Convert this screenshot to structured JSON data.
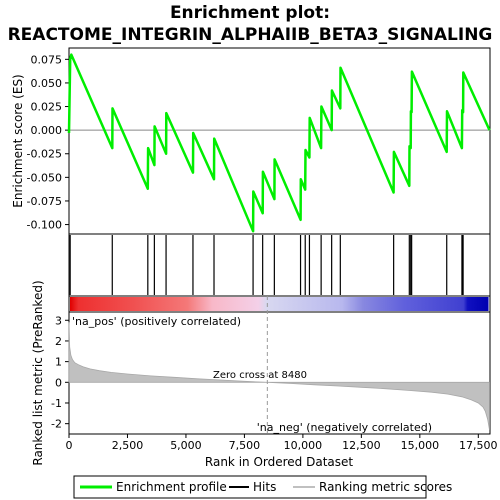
{
  "chart_data": {
    "type": "line",
    "title_line1": "Enrichment plot:",
    "title_line2": "REACTOME_INTEGRIN_ALPHAIIB_BETA3_SIGNALING",
    "es_panel": {
      "ylabel": "Enrichment score (ES)",
      "ylim": [
        -0.11,
        0.087
      ],
      "yticks": [
        "0.075",
        "0.050",
        "0.025",
        "0.000",
        "-0.025",
        "-0.050",
        "-0.075",
        "-0.100"
      ],
      "ytick_values": [
        0.075,
        0.05,
        0.025,
        0.0,
        -0.025,
        -0.05,
        -0.075,
        -0.1
      ],
      "series": [
        {
          "name": "Enrichment profile",
          "color": "#00ee00",
          "x": [
            0,
            50,
            100,
            1850,
            1860,
            3370,
            3380,
            3650,
            3660,
            4150,
            4160,
            5300,
            5310,
            6200,
            6210,
            7870,
            7880,
            8280,
            8290,
            8780,
            8790,
            9900,
            9910,
            10100,
            10110,
            10280,
            10290,
            10780,
            10790,
            11230,
            11240,
            11600,
            11610,
            13880,
            13890,
            14550,
            14560,
            14610,
            14620,
            14650,
            14660,
            16150,
            16160,
            16800,
            16810,
            16850,
            16860,
            17980
          ],
          "y": [
            -0.003,
            0.075,
            0.08,
            -0.019,
            0.023,
            -0.062,
            -0.019,
            -0.037,
            0.004,
            -0.025,
            0.018,
            -0.045,
            -0.003,
            -0.052,
            -0.009,
            -0.107,
            -0.065,
            -0.088,
            -0.044,
            -0.073,
            -0.031,
            -0.095,
            -0.052,
            -0.063,
            -0.021,
            -0.029,
            0.013,
            -0.019,
            0.025,
            0.0,
            0.042,
            0.023,
            0.066,
            -0.066,
            -0.023,
            -0.059,
            -0.017,
            -0.019,
            0.02,
            0.019,
            0.062,
            -0.023,
            0.02,
            -0.019,
            0.021,
            0.019,
            0.061,
            0.0
          ]
        }
      ]
    },
    "hits": {
      "name": "Hits",
      "x": [
        50,
        1850,
        3370,
        3650,
        4150,
        5300,
        6200,
        7870,
        8280,
        8780,
        9900,
        10100,
        10280,
        10780,
        11230,
        11600,
        13880,
        14550,
        14610,
        14650,
        16150,
        16800,
        16850
      ]
    },
    "rank_panel": {
      "ylabel": "Ranked list metric (PreRanked)",
      "ylim": [
        -2.5,
        3.4
      ],
      "yticks": [
        "3",
        "2",
        "1",
        "0",
        "-1",
        "-2"
      ],
      "ytick_values": [
        3,
        2,
        1,
        0,
        -1,
        -2
      ],
      "series": [
        {
          "name": "Ranking metric scores",
          "color": "#c0c0c0",
          "x": [
            0,
            30,
            80,
            150,
            250,
            400,
            600,
            900,
            1300,
            1800,
            2500,
            3500,
            4500,
            5500,
            6500,
            7500,
            8480,
            9500,
            10500,
            11500,
            12500,
            13500,
            14500,
            15500,
            16200,
            16800,
            17200,
            17500,
            17700,
            17800,
            17900,
            17980
          ],
          "y": [
            2.9,
            1.7,
            1.3,
            1.1,
            0.95,
            0.85,
            0.75,
            0.65,
            0.56,
            0.48,
            0.4,
            0.31,
            0.24,
            0.17,
            0.11,
            0.05,
            0.0,
            -0.06,
            -0.12,
            -0.18,
            -0.24,
            -0.31,
            -0.39,
            -0.48,
            -0.57,
            -0.7,
            -0.85,
            -1.0,
            -1.2,
            -1.4,
            -1.8,
            -2.3
          ]
        }
      ],
      "pos_label": "'na_pos' (positively correlated)",
      "neg_label": "'na_neg' (negatively correlated)",
      "zero_cross_label": "Zero cross at 8480",
      "zero_cross_x": 8480,
      "pos_color": "#cc0000",
      "neg_color": "#0000cc"
    },
    "xlabel": "Rank in Ordered Dataset",
    "xlim": [
      0,
      18000
    ],
    "xticks": [
      "0",
      "2,500",
      "5,000",
      "7,500",
      "10,000",
      "12,500",
      "15,000",
      "17,500"
    ],
    "xtick_values": [
      0,
      2500,
      5000,
      7500,
      10000,
      12500,
      15000,
      17500
    ],
    "legend": {
      "placement": "bottom",
      "items": [
        "Enrichment profile",
        "Hits",
        "Ranking metric scores"
      ]
    }
  }
}
